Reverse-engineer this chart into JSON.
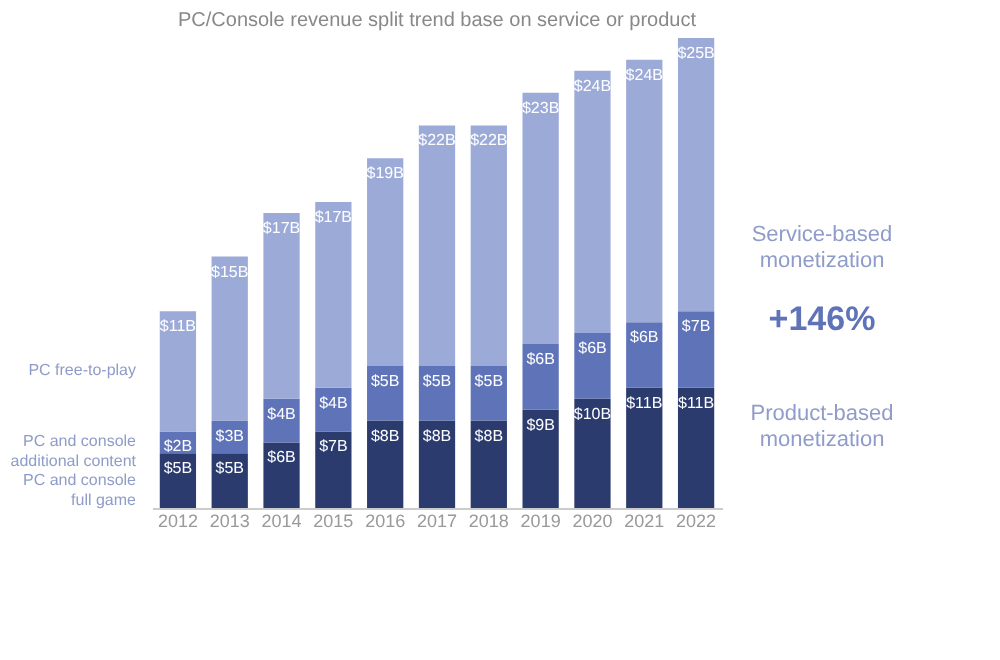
{
  "chart_data": {
    "type": "bar",
    "title": "PC/Console revenue split trend base on service or product",
    "categories": [
      "2012",
      "2013",
      "2014",
      "2015",
      "2016",
      "2017",
      "2018",
      "2019",
      "2020",
      "2021",
      "2022"
    ],
    "stacked": true,
    "legend": false,
    "grid": false,
    "tick_labels": "x",
    "series": [
      {
        "name": "PC and console full game",
        "color": "#2b3b6e",
        "values": [
          5,
          5,
          6,
          7,
          8,
          8,
          8,
          9,
          10,
          11,
          11
        ],
        "value_labels": [
          "$5B",
          "$5B",
          "$6B",
          "$7B",
          "$8B",
          "$8B",
          "$8B",
          "$9B",
          "$10B",
          "$11B",
          "$11B"
        ]
      },
      {
        "name": "PC and console additional content",
        "color": "#5f73b8",
        "values": [
          2,
          3,
          4,
          4,
          5,
          5,
          5,
          6,
          6,
          6,
          7
        ],
        "value_labels": [
          "$2B",
          "$3B",
          "$4B",
          "$4B",
          "$5B",
          "$5B",
          "$5B",
          "$6B",
          "$6B",
          "$6B",
          "$7B"
        ]
      },
      {
        "name": "PC free-to-play",
        "color": "#9caad8",
        "values": [
          11,
          15,
          17,
          17,
          19,
          22,
          22,
          23,
          24,
          24,
          25
        ],
        "value_labels": [
          "$11B",
          "$15B",
          "$17B",
          "$17B",
          "$19B",
          "$22B",
          "$22B",
          "$23B",
          "$24B",
          "$24B",
          "$25B"
        ]
      }
    ],
    "annotations": [
      "Service-based monetization",
      "+146%",
      "Product-based monetization"
    ]
  }
}
